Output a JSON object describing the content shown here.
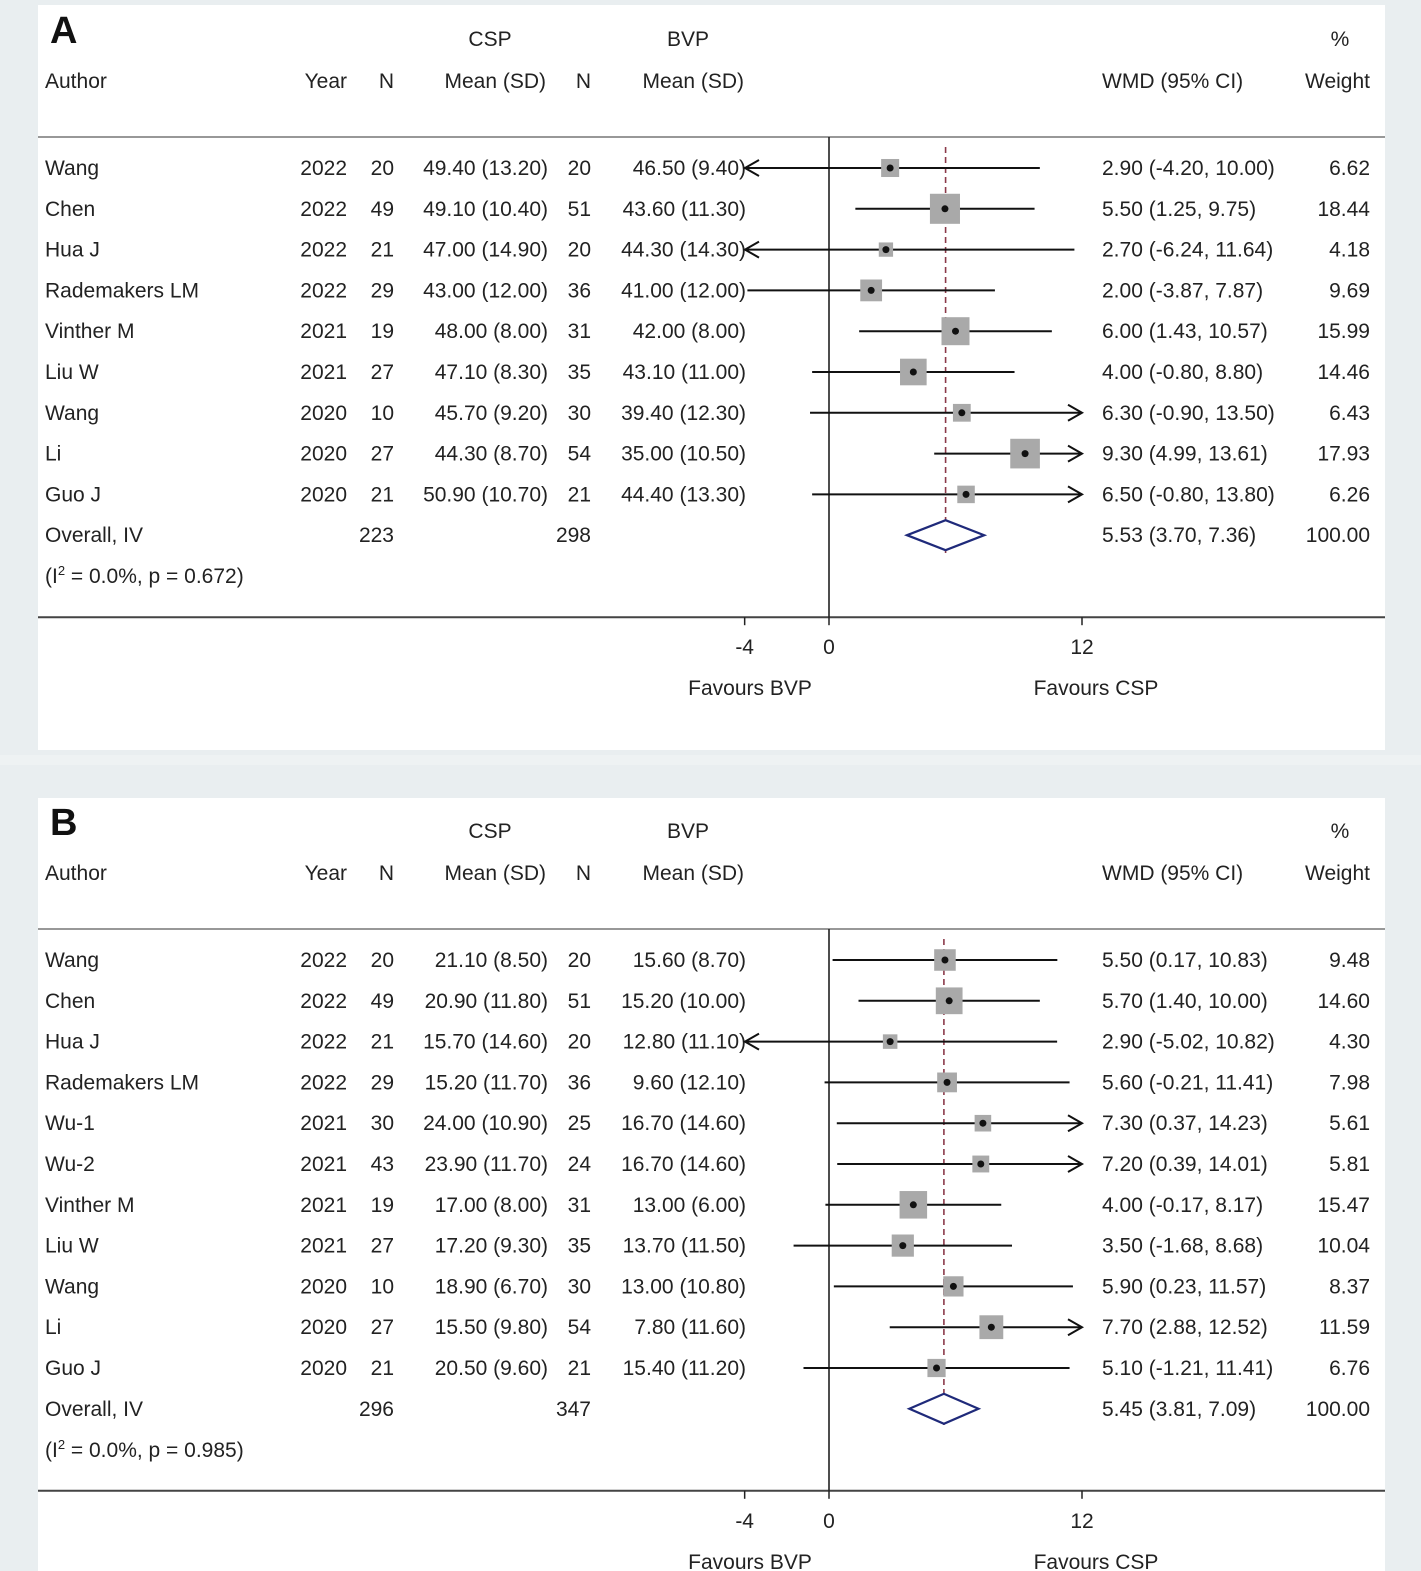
{
  "chart_data": [
    {
      "type": "forest",
      "panel": "A",
      "headers": {
        "group1": "CSP",
        "group2": "BVP",
        "percent": "%",
        "author": "Author",
        "year": "Year",
        "n1": "N",
        "mean_sd1": "Mean   (SD)",
        "n2": "N",
        "mean_sd2": "Mean   (SD)",
        "effect": "WMD (95% CI)",
        "weight": "Weight"
      },
      "xticks": [
        -4,
        0,
        12
      ],
      "xtick_labels": [
        "-4",
        "0",
        "12"
      ],
      "xlim": [
        -4,
        12
      ],
      "favours_left": "Favours BVP",
      "favours_right": "Favours CSP",
      "studies": [
        {
          "author": "Wang",
          "year": "2022",
          "n1": "20",
          "msd1": "49.40 (13.20)",
          "n2": "20",
          "msd2": "46.50 (9.40)",
          "es": 2.9,
          "lo": -4.2,
          "hi": 10.0,
          "ci_text": "2.90 (-4.20, 10.00)",
          "weight": 6.62,
          "weight_text": "6.62"
        },
        {
          "author": "Chen",
          "year": "2022",
          "n1": "49",
          "msd1": "49.10 (10.40)",
          "n2": "51",
          "msd2": "43.60 (11.30)",
          "es": 5.5,
          "lo": 1.25,
          "hi": 9.75,
          "ci_text": "5.50 (1.25, 9.75)",
          "weight": 18.44,
          "weight_text": "18.44"
        },
        {
          "author": "Hua J",
          "year": "2022",
          "n1": "21",
          "msd1": "47.00 (14.90)",
          "n2": "20",
          "msd2": "44.30 (14.30)",
          "es": 2.7,
          "lo": -6.24,
          "hi": 11.64,
          "ci_text": "2.70 (-6.24, 11.64)",
          "weight": 4.18,
          "weight_text": "4.18"
        },
        {
          "author": "Rademakers LM",
          "year": "2022",
          "n1": "29",
          "msd1": "43.00 (12.00)",
          "n2": "36",
          "msd2": "41.00 (12.00)",
          "es": 2.0,
          "lo": -3.87,
          "hi": 7.87,
          "ci_text": "2.00 (-3.87, 7.87)",
          "weight": 9.69,
          "weight_text": "9.69"
        },
        {
          "author": "Vinther M",
          "year": "2021",
          "n1": "19",
          "msd1": "48.00 (8.00)",
          "n2": "31",
          "msd2": "42.00 (8.00)",
          "es": 6.0,
          "lo": 1.43,
          "hi": 10.57,
          "ci_text": "6.00 (1.43, 10.57)",
          "weight": 15.99,
          "weight_text": "15.99"
        },
        {
          "author": "Liu W",
          "year": "2021",
          "n1": "27",
          "msd1": "47.10 (8.30)",
          "n2": "35",
          "msd2": "43.10 (11.00)",
          "es": 4.0,
          "lo": -0.8,
          "hi": 8.8,
          "ci_text": "4.00 (-0.80, 8.80)",
          "weight": 14.46,
          "weight_text": "14.46"
        },
        {
          "author": "Wang",
          "year": "2020",
          "n1": "10",
          "msd1": "45.70 (9.20)",
          "n2": "30",
          "msd2": "39.40 (12.30)",
          "es": 6.3,
          "lo": -0.9,
          "hi": 13.5,
          "ci_text": "6.30 (-0.90, 13.50)",
          "weight": 6.43,
          "weight_text": "6.43"
        },
        {
          "author": "Li",
          "year": "2020",
          "n1": "27",
          "msd1": "44.30 (8.70)",
          "n2": "54",
          "msd2": "35.00 (10.50)",
          "es": 9.3,
          "lo": 4.99,
          "hi": 13.61,
          "ci_text": "9.30 (4.99, 13.61)",
          "weight": 17.93,
          "weight_text": "17.93"
        },
        {
          "author": "Guo J",
          "year": "2020",
          "n1": "21",
          "msd1": "50.90 (10.70)",
          "n2": "21",
          "msd2": "44.40 (13.30)",
          "es": 6.5,
          "lo": -0.8,
          "hi": 13.8,
          "ci_text": "6.50 (-0.80, 13.80)",
          "weight": 6.26,
          "weight_text": "6.26"
        }
      ],
      "overall": {
        "label": "Overall, IV",
        "n1": "223",
        "n2": "298",
        "es": 5.53,
        "lo": 3.7,
        "hi": 7.36,
        "ci_text": "5.53 (3.70, 7.36)",
        "weight_text": "100.00"
      },
      "heterogeneity": {
        "prefix": "(I",
        "sup": "2",
        "rest": " = 0.0%, p = 0.672)"
      }
    },
    {
      "type": "forest",
      "panel": "B",
      "headers": {
        "group1": "CSP",
        "group2": "BVP",
        "percent": "%",
        "author": "Author",
        "year": "Year",
        "n1": "N",
        "mean_sd1": "Mean   (SD)",
        "n2": "N",
        "mean_sd2": "Mean   (SD)",
        "effect": "WMD (95% CI)",
        "weight": "Weight"
      },
      "xticks": [
        -4,
        0,
        12
      ],
      "xtick_labels": [
        "-4",
        "0",
        "12"
      ],
      "xlim": [
        -4,
        12
      ],
      "favours_left": "Favours BVP",
      "favours_right": "Favours CSP",
      "studies": [
        {
          "author": "Wang",
          "year": "2022",
          "n1": "20",
          "msd1": "21.10 (8.50)",
          "n2": "20",
          "msd2": "15.60 (8.70)",
          "es": 5.5,
          "lo": 0.17,
          "hi": 10.83,
          "ci_text": "5.50 (0.17, 10.83)",
          "weight": 9.48,
          "weight_text": "9.48"
        },
        {
          "author": "Chen",
          "year": "2022",
          "n1": "49",
          "msd1": "20.90 (11.80)",
          "n2": "51",
          "msd2": "15.20 (10.00)",
          "es": 5.7,
          "lo": 1.4,
          "hi": 10.0,
          "ci_text": "5.70 (1.40, 10.00)",
          "weight": 14.6,
          "weight_text": "14.60"
        },
        {
          "author": "Hua J",
          "year": "2022",
          "n1": "21",
          "msd1": "15.70 (14.60)",
          "n2": "20",
          "msd2": "12.80 (11.10)",
          "es": 2.9,
          "lo": -5.02,
          "hi": 10.82,
          "ci_text": "2.90 (-5.02, 10.82)",
          "weight": 4.3,
          "weight_text": "4.30"
        },
        {
          "author": "Rademakers LM",
          "year": "2022",
          "n1": "29",
          "msd1": "15.20 (11.70)",
          "n2": "36",
          "msd2": "9.60 (12.10)",
          "es": 5.6,
          "lo": -0.21,
          "hi": 11.41,
          "ci_text": "5.60 (-0.21, 11.41)",
          "weight": 7.98,
          "weight_text": "7.98"
        },
        {
          "author": "Wu-1",
          "year": "2021",
          "n1": "30",
          "msd1": "24.00 (10.90)",
          "n2": "25",
          "msd2": "16.70 (14.60)",
          "es": 7.3,
          "lo": 0.37,
          "hi": 14.23,
          "ci_text": "7.30 (0.37, 14.23)",
          "weight": 5.61,
          "weight_text": "5.61"
        },
        {
          "author": "Wu-2",
          "year": "2021",
          "n1": "43",
          "msd1": "23.90 (11.70)",
          "n2": "24",
          "msd2": "16.70 (14.60)",
          "es": 7.2,
          "lo": 0.39,
          "hi": 14.01,
          "ci_text": "7.20 (0.39, 14.01)",
          "weight": 5.81,
          "weight_text": "5.81"
        },
        {
          "author": "Vinther M",
          "year": "2021",
          "n1": "19",
          "msd1": "17.00 (8.00)",
          "n2": "31",
          "msd2": "13.00 (6.00)",
          "es": 4.0,
          "lo": -0.17,
          "hi": 8.17,
          "ci_text": "4.00 (-0.17, 8.17)",
          "weight": 15.47,
          "weight_text": "15.47"
        },
        {
          "author": "Liu W",
          "year": "2021",
          "n1": "27",
          "msd1": "17.20 (9.30)",
          "n2": "35",
          "msd2": "13.70 (11.50)",
          "es": 3.5,
          "lo": -1.68,
          "hi": 8.68,
          "ci_text": "3.50 (-1.68, 8.68)",
          "weight": 10.04,
          "weight_text": "10.04"
        },
        {
          "author": "Wang",
          "year": "2020",
          "n1": "10",
          "msd1": "18.90 (6.70)",
          "n2": "30",
          "msd2": "13.00 (10.80)",
          "es": 5.9,
          "lo": 0.23,
          "hi": 11.57,
          "ci_text": "5.90 (0.23, 11.57)",
          "weight": 8.37,
          "weight_text": "8.37"
        },
        {
          "author": "Li",
          "year": "2020",
          "n1": "27",
          "msd1": "15.50 (9.80)",
          "n2": "54",
          "msd2": "7.80 (11.60)",
          "es": 7.7,
          "lo": 2.88,
          "hi": 12.52,
          "ci_text": "7.70 (2.88, 12.52)",
          "weight": 11.59,
          "weight_text": "11.59"
        },
        {
          "author": "Guo J",
          "year": "2020",
          "n1": "21",
          "msd1": "20.50 (9.60)",
          "n2": "21",
          "msd2": "15.40 (11.20)",
          "es": 5.1,
          "lo": -1.21,
          "hi": 11.41,
          "ci_text": "5.10 (-1.21, 11.41)",
          "weight": 6.76,
          "weight_text": "6.76"
        }
      ],
      "overall": {
        "label": "Overall, IV",
        "n1": "296",
        "n2": "347",
        "es": 5.45,
        "lo": 3.81,
        "hi": 7.09,
        "ci_text": "5.45 (3.81, 7.09)",
        "weight_text": "100.00"
      },
      "heterogeneity": {
        "prefix": "(I",
        "sup": "2",
        "rest": " = 0.0%, p = 0.985)"
      }
    }
  ],
  "panels": {
    "a_label": "A",
    "b_label": "B"
  },
  "colors": {
    "panel_bg": "#e9eef0",
    "plot_bg": "#ffffff",
    "box": "#a9a9a9",
    "dashed_line": "#8b3a4a",
    "diamond": "#1f2a7a",
    "ink": "#111111"
  }
}
